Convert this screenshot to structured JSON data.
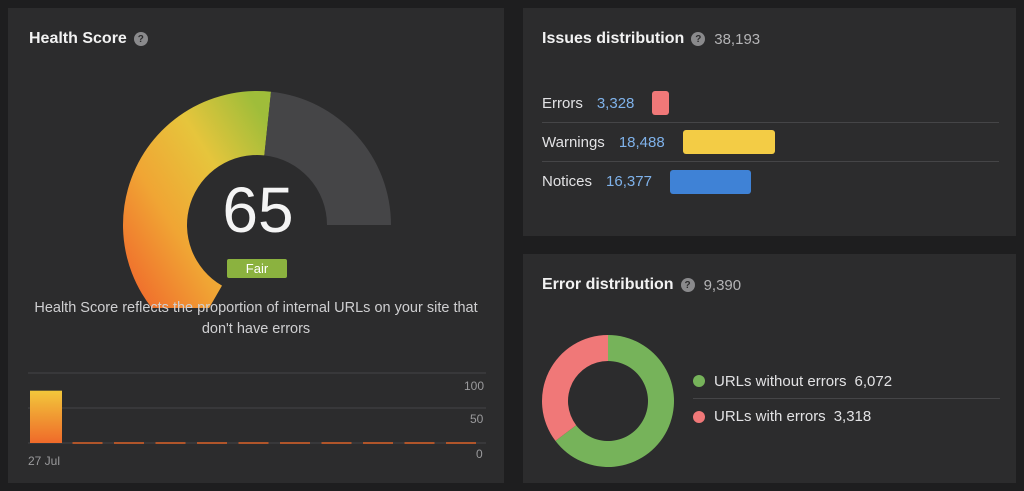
{
  "colors": {
    "errors": "#f07878",
    "warnings": "#f3cc45",
    "notices": "#3f82d6",
    "ok": "#76b35a",
    "fair": "#8bb23f"
  },
  "health": {
    "title": "Health Score",
    "help_icon": "question-icon",
    "score": "65",
    "score_value": 65,
    "rating": "Fair",
    "description": "Health Score reflects the proportion of internal URLs on your site that don't have errors"
  },
  "history": {
    "y_ticks": [
      "100",
      "50",
      "0"
    ],
    "x_label": "27 Jul",
    "values": [
      65,
      0,
      0,
      0,
      0,
      0,
      0,
      0,
      0,
      0,
      0
    ],
    "y_max": 100
  },
  "issues": {
    "title": "Issues distribution",
    "total": "38,193",
    "rows": [
      {
        "name": "Errors",
        "count": "3,328",
        "value": 3328,
        "color": "#f07878"
      },
      {
        "name": "Warnings",
        "count": "18,488",
        "value": 18488,
        "color": "#f3cc45"
      },
      {
        "name": "Notices",
        "count": "16,377",
        "value": 16377,
        "color": "#3f82d6"
      }
    ]
  },
  "errors": {
    "title": "Error distribution",
    "total": "9,390",
    "legend": [
      {
        "label": "URLs without errors",
        "value": "6,072",
        "num": 6072,
        "color": "#76b35a"
      },
      {
        "label": "URLs with errors",
        "value": "3,318",
        "num": 3318,
        "color": "#f07878"
      }
    ]
  }
}
